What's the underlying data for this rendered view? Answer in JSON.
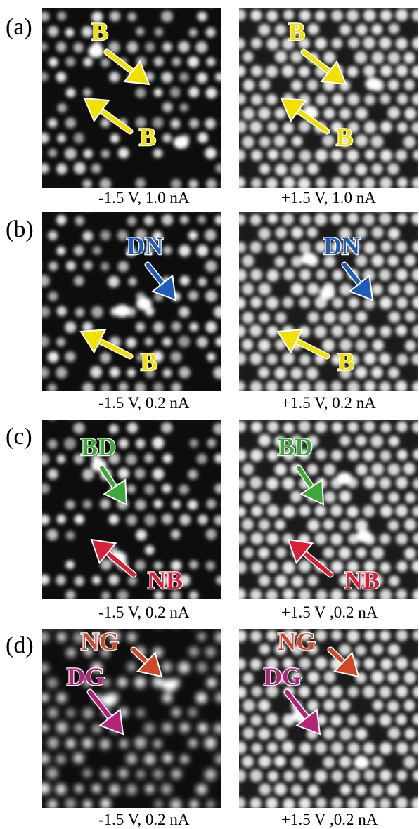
{
  "panels": [
    {
      "label": "(a)",
      "left": {
        "caption": "-1.5 V, 1.0 nA",
        "arrows": [
          {
            "text": "B",
            "color": "#f2e100"
          },
          {
            "text": "B",
            "color": "#f2e100"
          }
        ]
      },
      "right": {
        "caption": "+1.5 V, 1.0 nA",
        "arrows": [
          {
            "text": "B",
            "color": "#f2e100"
          },
          {
            "text": "B",
            "color": "#f2e100"
          }
        ]
      }
    },
    {
      "label": "(b)",
      "left": {
        "caption": "-1.5 V, 0.2 nA",
        "arrows": [
          {
            "text": "DN",
            "color": "#1f5cb8"
          },
          {
            "text": "B",
            "color": "#f2e100"
          }
        ]
      },
      "right": {
        "caption": "+1.5 V, 0.2 nA",
        "arrows": [
          {
            "text": "DN",
            "color": "#1f5cb8"
          },
          {
            "text": "B",
            "color": "#f2e100"
          }
        ]
      }
    },
    {
      "label": "(c)",
      "left": {
        "caption": "-1.5 V, 0.2 nA",
        "arrows": [
          {
            "text": "BD",
            "color": "#3fa83a"
          },
          {
            "text": "NB",
            "color": "#d8203a"
          }
        ]
      },
      "right": {
        "caption": "+1.5 V ,0.2 nA",
        "arrows": [
          {
            "text": "BD",
            "color": "#3fa83a"
          },
          {
            "text": "NB",
            "color": "#d8203a"
          }
        ]
      }
    },
    {
      "label": "(d)",
      "left": {
        "caption": "-1.5 V, 0.2 nA",
        "arrows": [
          {
            "text": "NG",
            "color": "#d0482a"
          },
          {
            "text": "DG",
            "color": "#b3237a"
          }
        ]
      },
      "right": {
        "caption": "+1.5 V ,0.2 nA",
        "arrows": [
          {
            "text": "NG",
            "color": "#d0482a"
          },
          {
            "text": "DG",
            "color": "#b3237a"
          }
        ]
      }
    }
  ]
}
